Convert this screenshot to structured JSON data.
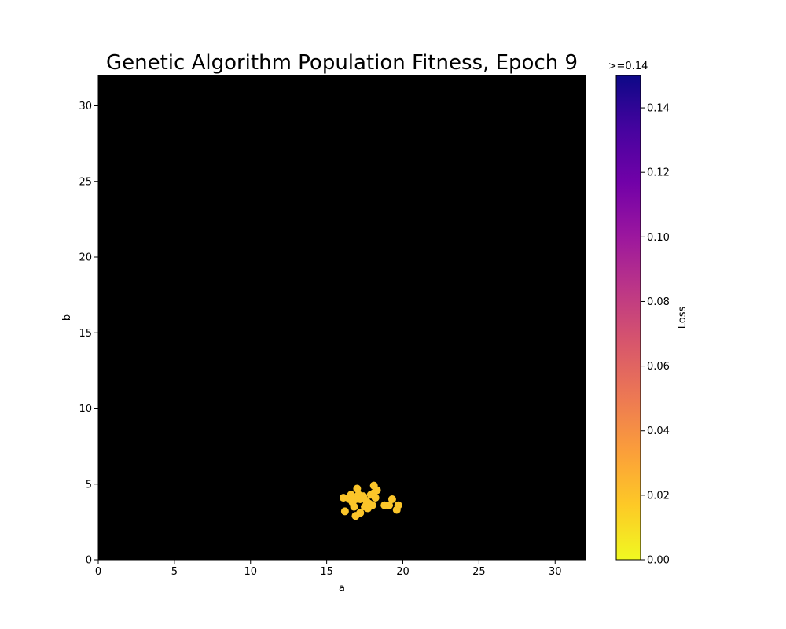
{
  "chart_data": {
    "type": "scatter",
    "title": "Genetic Algorithm Population Fitness, Epoch 9",
    "xlabel": "a",
    "ylabel": "b",
    "xlim": [
      0,
      32
    ],
    "ylim": [
      0,
      32
    ],
    "xticks": [
      0,
      5,
      10,
      15,
      20,
      25,
      30
    ],
    "yticks": [
      0,
      5,
      10,
      15,
      20,
      25,
      30
    ],
    "background_color": "#000000",
    "point_color": "#fbc52a",
    "colorbar": {
      "label": "Loss",
      "top_label": ">=0.14",
      "range": [
        0,
        0.15
      ],
      "ticks": [
        "0.00",
        "0.02",
        "0.04",
        "0.06",
        "0.08",
        "0.10",
        "0.12",
        "0.14"
      ],
      "colormap": "plasma_r",
      "stops": [
        "#f0f921",
        "#fdca26",
        "#fb9f3a",
        "#ed7953",
        "#d8576b",
        "#bd3786",
        "#9c179e",
        "#7201a8",
        "#46039f",
        "#0d0887"
      ]
    },
    "points": [
      {
        "x": 16.1,
        "y": 4.1
      },
      {
        "x": 16.2,
        "y": 3.2
      },
      {
        "x": 16.5,
        "y": 4.0
      },
      {
        "x": 16.6,
        "y": 4.3
      },
      {
        "x": 16.7,
        "y": 3.8
      },
      {
        "x": 16.8,
        "y": 3.5
      },
      {
        "x": 16.9,
        "y": 4.0
      },
      {
        "x": 16.9,
        "y": 2.9
      },
      {
        "x": 17.0,
        "y": 4.7
      },
      {
        "x": 17.1,
        "y": 4.3
      },
      {
        "x": 17.2,
        "y": 3.1
      },
      {
        "x": 17.2,
        "y": 4.0
      },
      {
        "x": 17.4,
        "y": 4.2
      },
      {
        "x": 17.5,
        "y": 3.5
      },
      {
        "x": 17.6,
        "y": 3.9
      },
      {
        "x": 17.7,
        "y": 3.4
      },
      {
        "x": 17.8,
        "y": 3.7
      },
      {
        "x": 17.9,
        "y": 4.3
      },
      {
        "x": 18.0,
        "y": 3.6
      },
      {
        "x": 18.1,
        "y": 4.4
      },
      {
        "x": 18.1,
        "y": 4.9
      },
      {
        "x": 18.2,
        "y": 4.1
      },
      {
        "x": 18.3,
        "y": 4.6
      },
      {
        "x": 18.8,
        "y": 3.6
      },
      {
        "x": 19.1,
        "y": 3.6
      },
      {
        "x": 19.3,
        "y": 4.0
      },
      {
        "x": 19.6,
        "y": 3.3
      },
      {
        "x": 19.7,
        "y": 3.6
      }
    ]
  }
}
